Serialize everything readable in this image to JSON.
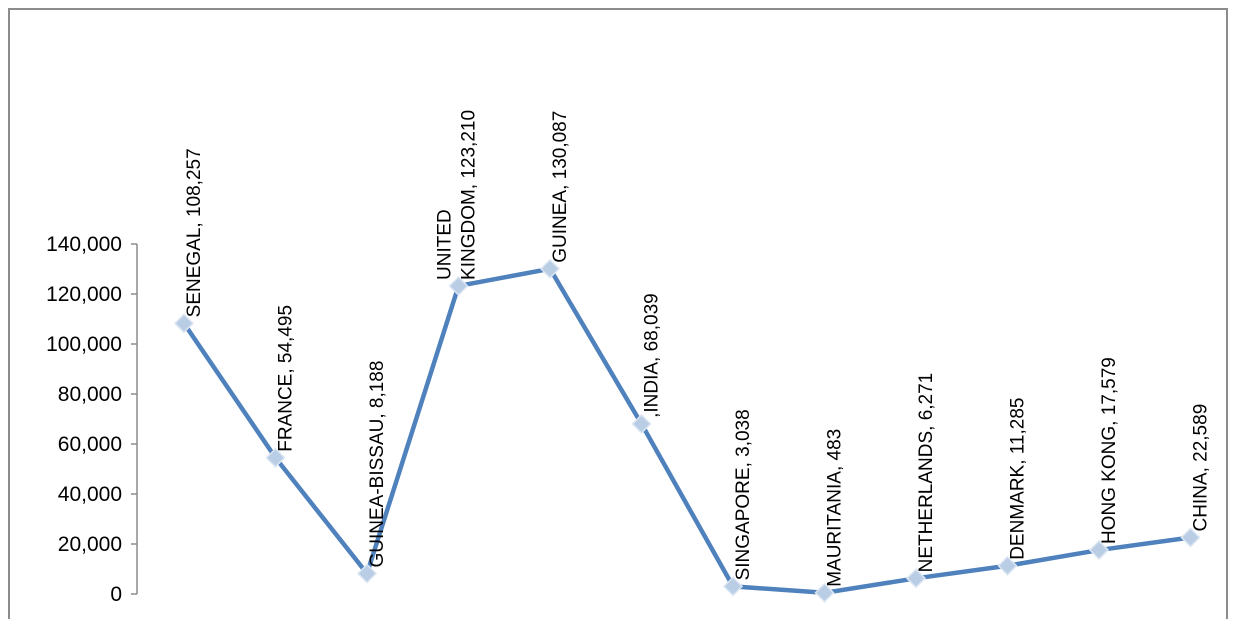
{
  "chart_data": {
    "type": "line",
    "categories": [
      "SENEGAL",
      "FRANCE",
      "GUINEA-BISSAU",
      "UNITED KINGDOM",
      "GUINEA",
      "INDIA",
      "SINGAPORE",
      "MAURITANIA",
      "NETHERLANDS",
      "DENMARK",
      "HONG KONG",
      "CHINA"
    ],
    "values": [
      108257,
      54495,
      8188,
      123210,
      130087,
      68039,
      3038,
      483,
      6271,
      11285,
      17579,
      22589
    ],
    "data_labels": [
      [
        "SENEGAL, 108,257"
      ],
      [
        "FRANCE, 54,495"
      ],
      [
        "GUINEA-BISSAU, 8,188"
      ],
      [
        "UNITED",
        "KINGDOM, 123,210"
      ],
      [
        "GUINEA, 130,087"
      ],
      [
        ",INDIA, 68,039"
      ],
      [
        "SINGAPORE, 3,038"
      ],
      [
        "MAURITANIA, 483"
      ],
      [
        "NETHERLANDS, 6,271"
      ],
      [
        "DENMARK, 11,285"
      ],
      [
        "HONG KONG, 17,579"
      ],
      [
        "CHINA, 22,589"
      ]
    ],
    "y_ticks": [
      "0",
      "20,000",
      "40,000",
      "60,000",
      "80,000",
      "100,000",
      "120,000",
      "140,000"
    ],
    "ylim": [
      0,
      140000
    ],
    "title": "",
    "xlabel": "",
    "ylabel": "",
    "grid": false,
    "legend": "none",
    "line_color": "#4F81BD",
    "marker": "diamond",
    "marker_color": "#B9CDE5"
  }
}
